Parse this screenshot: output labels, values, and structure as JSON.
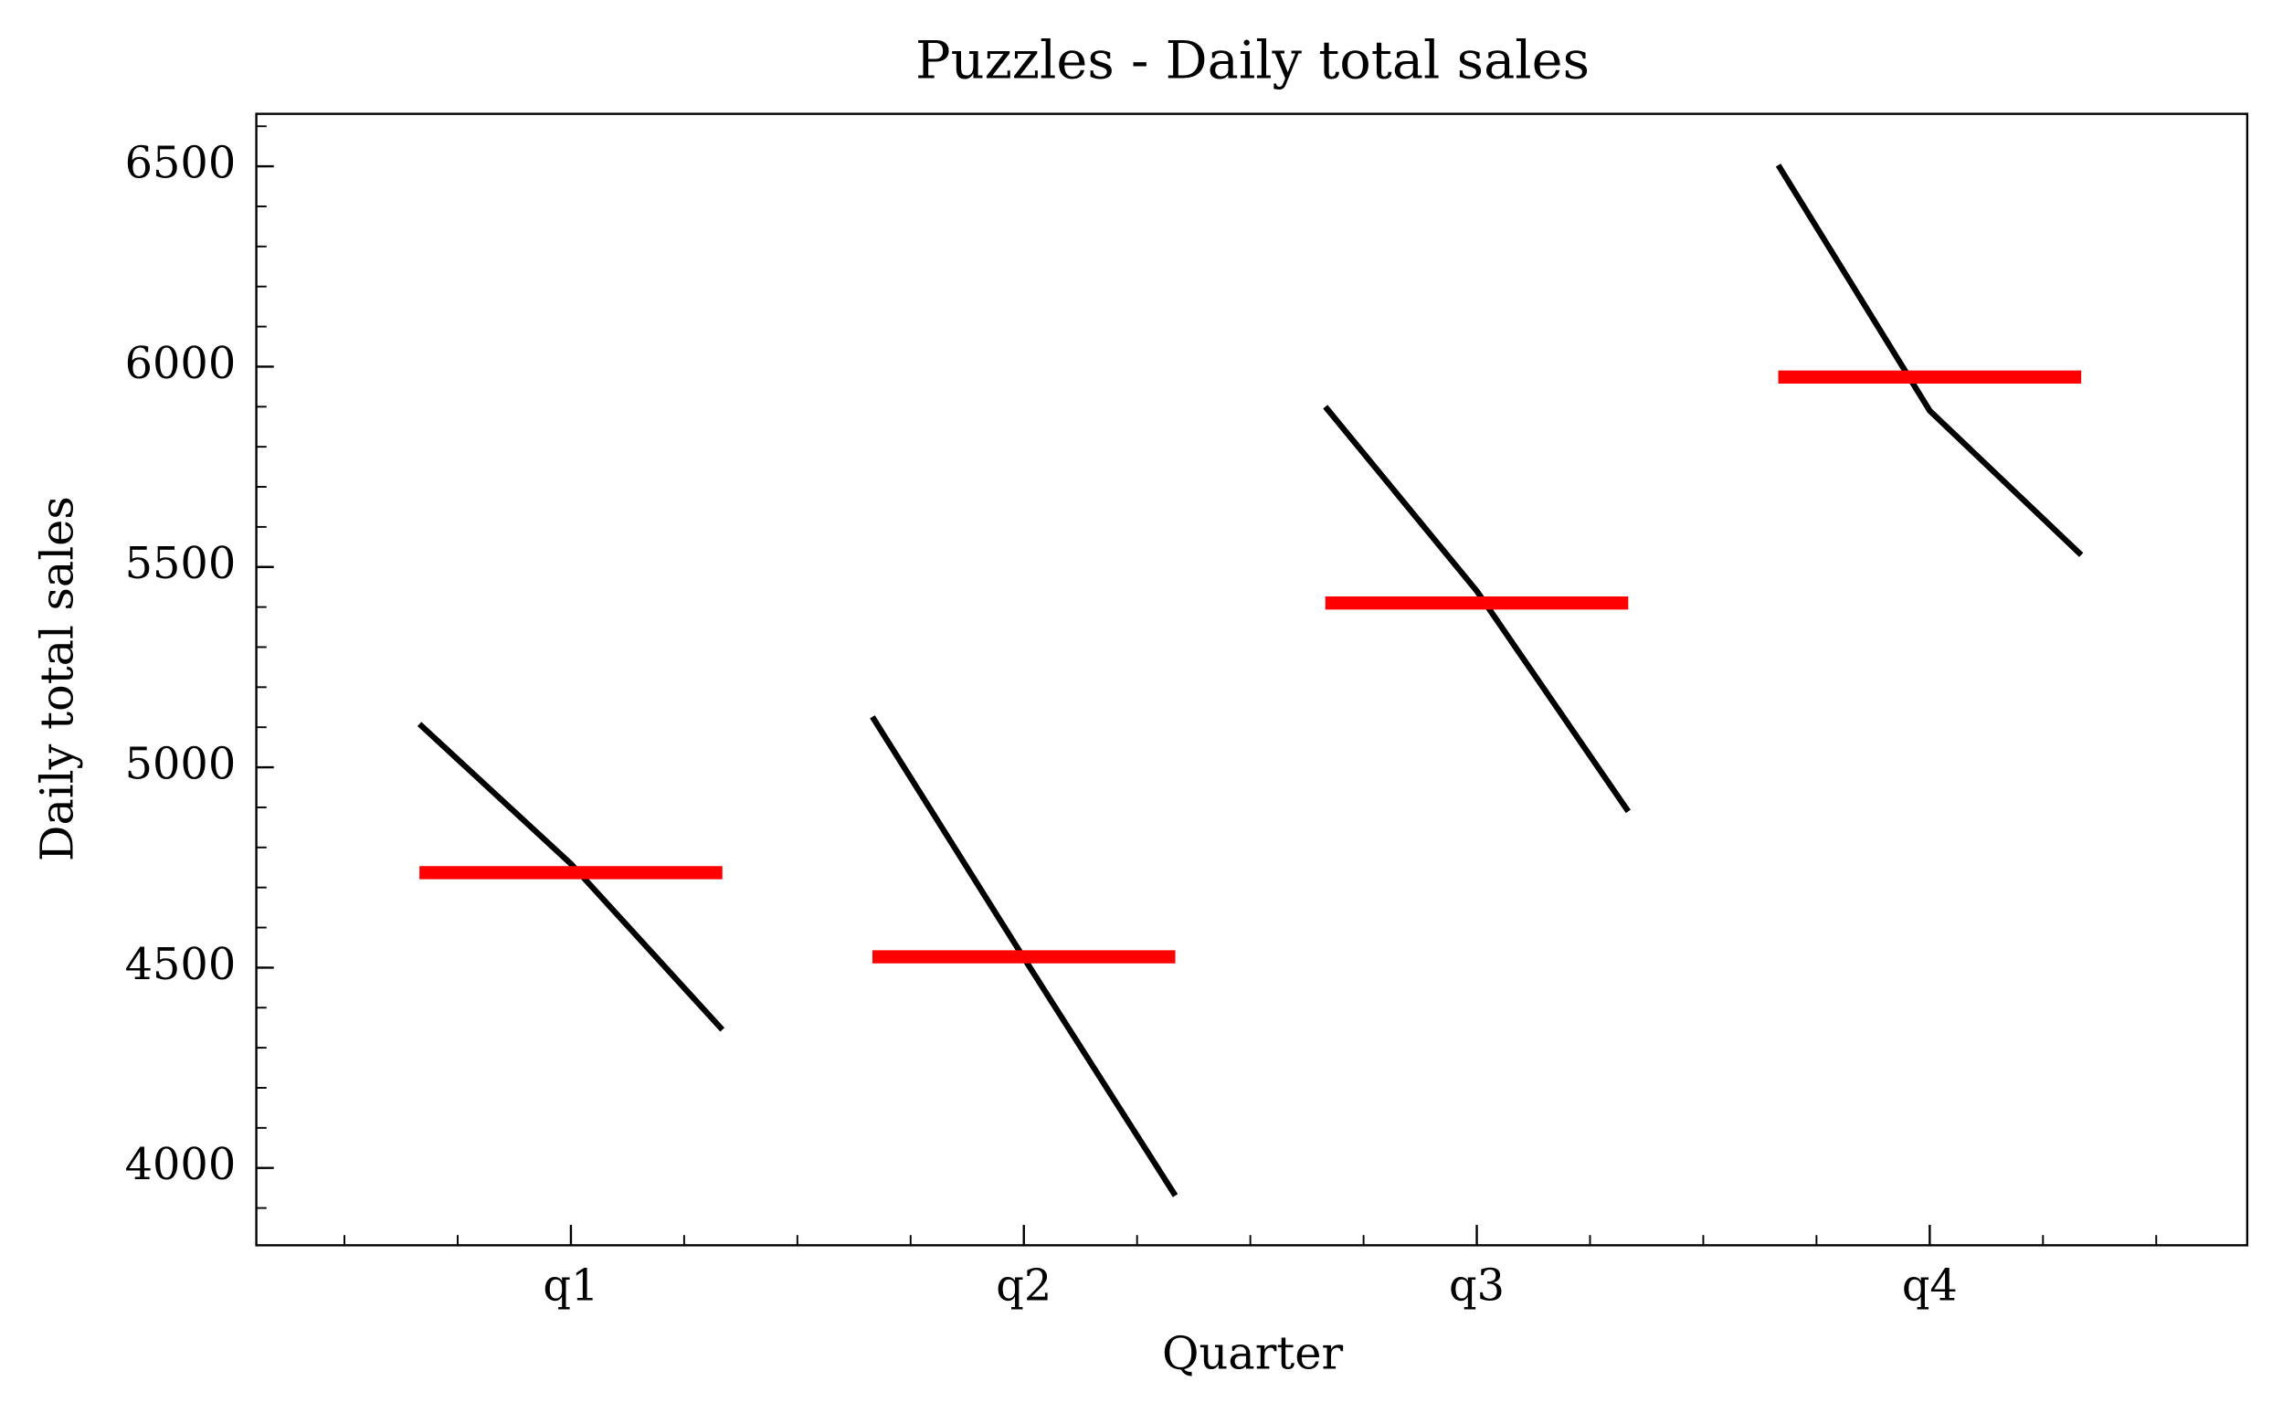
{
  "chart_data": {
    "type": "line",
    "title": "Puzzles - Daily total sales",
    "xlabel": "Quarter",
    "ylabel": "Daily total sales",
    "categories": [
      "q1",
      "q2",
      "q3",
      "q4"
    ],
    "values": [
      [
        5108,
        4759,
        4345
      ],
      [
        5126,
        4524,
        3931
      ],
      [
        5900,
        5440,
        4890
      ],
      [
        6503,
        5890,
        5530
      ]
    ],
    "means": [
      4737,
      4527,
      5410,
      5974
    ],
    "line_color": "#000000",
    "mean_color": "#ff0000",
    "ylim": [
      3807,
      6631
    ],
    "yticks": [
      4000,
      4500,
      5000,
      5500,
      6000,
      6500
    ],
    "grid": false
  }
}
